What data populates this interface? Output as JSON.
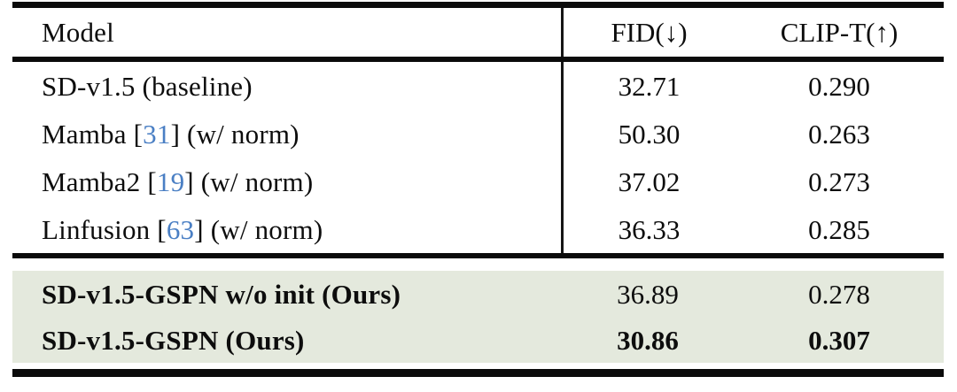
{
  "table": {
    "header": {
      "model": "Model",
      "fid": "FID(↓)",
      "clip": "CLIP-T(↑)"
    },
    "rows": [
      {
        "prefix": "SD-v1.5 (baseline)",
        "cite": "",
        "suffix": "",
        "fid": "32.71",
        "clip": "0.290"
      },
      {
        "prefix": "Mamba [",
        "cite": "31",
        "suffix": "] (w/ norm)",
        "fid": "50.30",
        "clip": "0.263"
      },
      {
        "prefix": "Mamba2 [",
        "cite": "19",
        "suffix": "] (w/ norm)",
        "fid": "37.02",
        "clip": "0.273"
      },
      {
        "prefix": "Linfusion [",
        "cite": "63",
        "suffix": "] (w/ norm)",
        "fid": "36.33",
        "clip": "0.285"
      }
    ],
    "highlight_rows": [
      {
        "model": "SD-v1.5-GSPN w/o init (Ours)",
        "fid": "36.89",
        "clip": "0.278"
      },
      {
        "model": "SD-v1.5-GSPN (Ours)",
        "fid": "30.86",
        "clip": "0.307"
      }
    ],
    "colors": {
      "citation_blue": "#4a7fc4",
      "highlight_green": "#e4e9dd",
      "rule_black": "#0b0b0b"
    }
  }
}
